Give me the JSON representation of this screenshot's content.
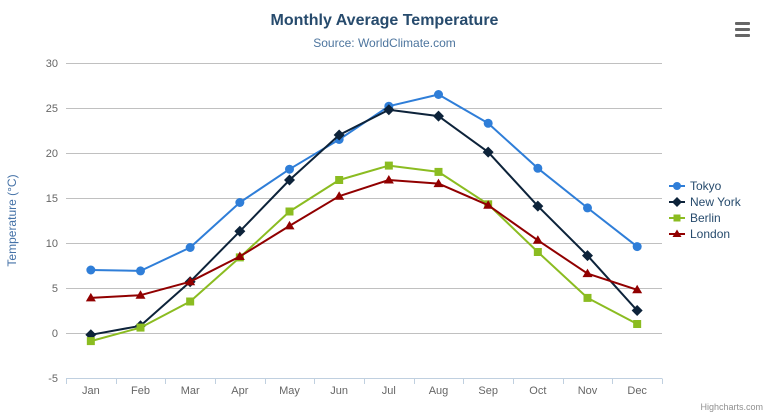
{
  "credits": {
    "label": "Highcharts.com"
  },
  "export_menu": {
    "icon": "hamburger-menu-icon"
  },
  "chart_data": {
    "type": "line",
    "title": "Monthly Average Temperature",
    "subtitle": "Source: WorldClimate.com",
    "xlabel": "",
    "ylabel": "Temperature (°C)",
    "categories": [
      "Jan",
      "Feb",
      "Mar",
      "Apr",
      "May",
      "Jun",
      "Jul",
      "Aug",
      "Sep",
      "Oct",
      "Nov",
      "Dec"
    ],
    "ylim": [
      -5,
      30
    ],
    "y_tick_step": 5,
    "grid": "horizontal",
    "legend_position": "right",
    "series": [
      {
        "name": "Tokyo",
        "color": "#2f7ed8",
        "marker": "circle",
        "values": [
          7.0,
          6.9,
          9.5,
          14.5,
          18.2,
          21.5,
          25.2,
          26.5,
          23.3,
          18.3,
          13.9,
          9.6
        ]
      },
      {
        "name": "New York",
        "color": "#0d233a",
        "marker": "diamond",
        "values": [
          -0.2,
          0.8,
          5.7,
          11.3,
          17.0,
          22.0,
          24.8,
          24.1,
          20.1,
          14.1,
          8.6,
          2.5
        ]
      },
      {
        "name": "Berlin",
        "color": "#8bbc21",
        "marker": "square",
        "values": [
          -0.9,
          0.6,
          3.5,
          8.4,
          13.5,
          17.0,
          18.6,
          17.9,
          14.3,
          9.0,
          3.9,
          1.0
        ]
      },
      {
        "name": "London",
        "color": "#910000",
        "marker": "triangle",
        "values": [
          3.9,
          4.2,
          5.7,
          8.5,
          11.9,
          15.2,
          17.0,
          16.6,
          14.2,
          10.3,
          6.6,
          4.8
        ]
      }
    ],
    "style": {
      "grid_color": "#C0C0C0",
      "axis_line_color": "#C0D0E0",
      "tick_color": "#C0D0E0",
      "label_color": "#666666",
      "axis_title_color": "#4572A7",
      "title_color": "#274b6d",
      "subtitle_color": "#4d759e",
      "legend_text_color": "#274b6d",
      "credits_color": "#909090"
    }
  }
}
